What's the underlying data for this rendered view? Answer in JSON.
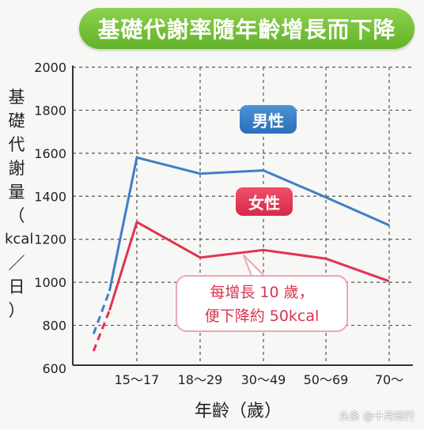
{
  "title": "基礎代謝率隨年齡增長而下降",
  "watermark": "头条 @十月知行",
  "callout": {
    "line1": "每增長 10 歲，",
    "line2": "便下降約 50kcal"
  },
  "colors": {
    "male": "#3f7fc4",
    "female": "#e2334f",
    "title_bg": "#74c23a"
  },
  "chart_data": {
    "type": "line",
    "title": "基礎代謝率隨年齡增長而下降",
    "xlabel": "年齡（歲）",
    "ylabel_chars": [
      "基",
      "礎",
      "代",
      "謝",
      "量",
      "（"
    ],
    "ylabel_unit": "kcal",
    "ylabel_tail": [
      "／",
      "日",
      "）"
    ],
    "categories": [
      "15～17",
      "18～29",
      "30～49",
      "50～69",
      "70～"
    ],
    "ylim": [
      600,
      2000
    ],
    "yticks": [
      600,
      800,
      1000,
      1200,
      1400,
      1600,
      1800,
      2000
    ],
    "grid": true,
    "series": [
      {
        "name": "男性",
        "color": "#3f7fc4",
        "values": [
          1580,
          1505,
          1520,
          1395,
          1265
        ],
        "lead_in": [
          [
            0.2,
            760
          ],
          [
            0.45,
            960
          ]
        ]
      },
      {
        "name": "女性",
        "color": "#e2334f",
        "values": [
          1280,
          1115,
          1150,
          1110,
          1005
        ],
        "lead_in": [
          [
            0.2,
            680
          ],
          [
            0.45,
            870
          ]
        ]
      }
    ]
  }
}
